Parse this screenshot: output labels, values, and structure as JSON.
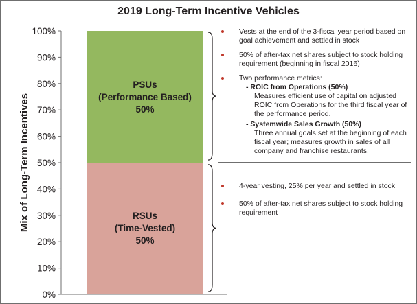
{
  "chart_data": {
    "type": "bar",
    "stacked": true,
    "title": "2019 Long-Term Incentive Vehicles",
    "ylabel": "Mix of Long-Term Incentives",
    "xlabel": "",
    "ylim": [
      0,
      100
    ],
    "yticks": [
      "0%",
      "10%",
      "20%",
      "30%",
      "40%",
      "50%",
      "60%",
      "70%",
      "80%",
      "90%",
      "100%"
    ],
    "series": [
      {
        "name": "RSUs (Time-Vested)",
        "value": 50,
        "color": "#d9a39a",
        "label_lines": [
          "RSUs",
          "(Time-Vested)",
          "50%"
        ]
      },
      {
        "name": "PSUs (Performance Based)",
        "value": 50,
        "color": "#94b85f",
        "label_lines": [
          "PSUs",
          "(Performance Based)",
          "50%"
        ]
      }
    ]
  },
  "notes": {
    "psu": [
      "Vests at the end of the 3-fiscal year period based on goal achievement and settled in stock",
      "50% of after-tax net shares subject to stock holding requirement (beginning in fiscal 2016)",
      "Two performance metrics:"
    ],
    "metrics": [
      {
        "title": "- ROIC from Operations (50%)",
        "desc": "Measures efficient use of capital on adjusted ROIC from Operations for the third fiscal year of the performance period."
      },
      {
        "title": "- Systemwide Sales Growth (50%)",
        "desc": "Three annual goals set at the beginning of each fiscal year; measures growth in sales of all company and franchise restaurants."
      }
    ],
    "rsu": [
      "4-year vesting, 25% per year and settled in stock",
      "50% of after-tax net shares subject to stock holding requirement"
    ]
  }
}
